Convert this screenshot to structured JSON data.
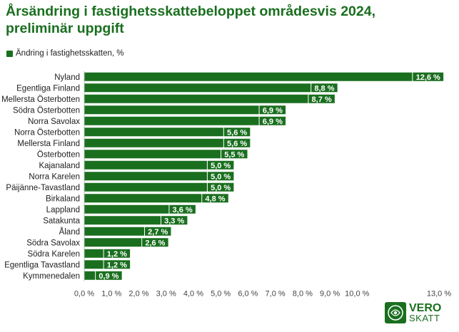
{
  "title": "Årsändring i fastighetsskattebeloppet områdesvis 2024, preliminär uppgift",
  "legend_label": "Ändring i fastighetsskatten, %",
  "colors": {
    "bar": "#1a6f1f",
    "title": "#1a6f1f",
    "data_label_bg": "#1a6f1f"
  },
  "logo": {
    "line1": "VERO",
    "line2": "SKATT"
  },
  "chart_data": {
    "type": "bar",
    "orientation": "horizontal",
    "title": "Årsändring i fastighetsskattebeloppet områdesvis 2024, preliminär uppgift",
    "series": [
      {
        "name": "Ändring i fastighetsskatten, %",
        "values": [
          12.6,
          8.8,
          8.7,
          6.9,
          6.9,
          5.6,
          5.6,
          5.5,
          5.0,
          5.0,
          5.0,
          4.8,
          3.6,
          3.3,
          2.7,
          2.6,
          1.2,
          1.2,
          0.9
        ]
      }
    ],
    "categories": [
      "Nyland",
      "Egentliga Finland",
      "Mellersta Österbotten",
      "Södra Österbotten",
      "Norra Savolax",
      "Norra Österbotten",
      "Mellersta Finland",
      "Österbotten",
      "Kajanaland",
      "Norra Karelen",
      "Päijänne-Tavastland",
      "Birkaland",
      "Lappland",
      "Satakunta",
      "Åland",
      "Södra Savolax",
      "Södra Karelen",
      "Egentliga Tavastland",
      "Kymmenedalen"
    ],
    "data_labels": [
      "12,6 %",
      "8,8 %",
      "8,7 %",
      "6,9 %",
      "6,9 %",
      "5,6 %",
      "5,6 %",
      "5,5 %",
      "5,0 %",
      "5,0 %",
      "5,0 %",
      "4,8 %",
      "3,6 %",
      "3,3 %",
      "2,7 %",
      "2,6 %",
      "1,2 %",
      "1,2 %",
      "0,9 %"
    ],
    "x_ticks": [
      0,
      1,
      2,
      3,
      4,
      5,
      6,
      7,
      8,
      9,
      10,
      13
    ],
    "x_tick_labels": [
      "0,0 %",
      "1,0 %",
      "2,0 %",
      "3,0 %",
      "4,0 %",
      "5,0 %",
      "6,0 %",
      "7,0 %",
      "8,0 %",
      "9,0 %",
      "10,0 %",
      "13,0 %"
    ],
    "xlim": [
      0,
      13
    ],
    "grid": false,
    "legend_position": "top-left"
  }
}
